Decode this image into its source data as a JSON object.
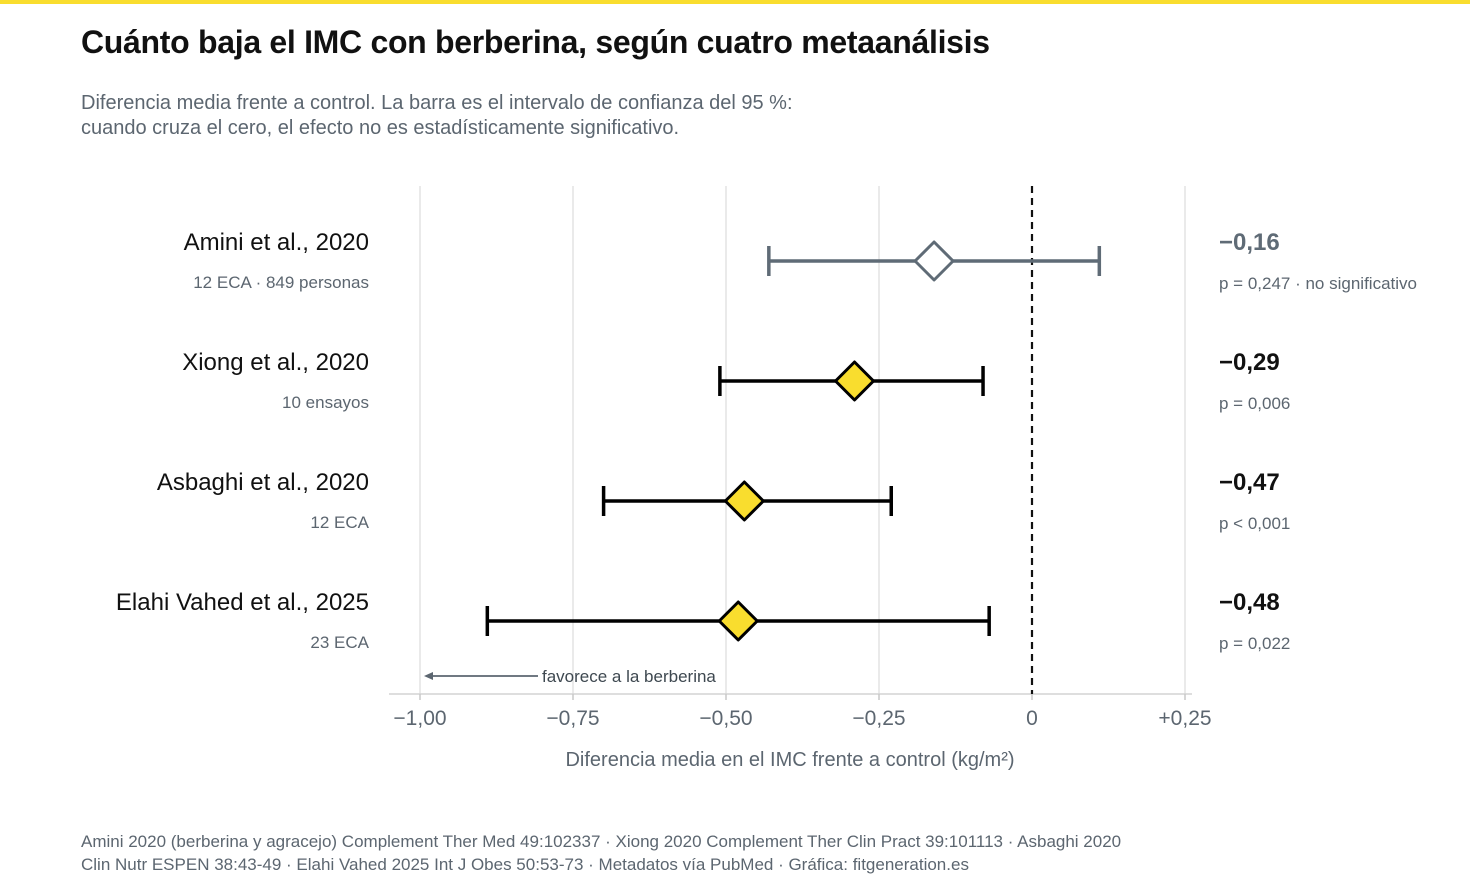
{
  "title": "Cuánto baja el IMC con berberina, según cuatro metaanálisis",
  "subtitle": [
    "Diferencia media frente a control. La barra es el intervalo de confianza del 95 %:",
    "cuando cruza el cero, el efecto no es estadísticamente significativo."
  ],
  "colors": {
    "accent": "#f9dd2e",
    "nonsig": "#5f6b76",
    "sig": "#000000",
    "grid": "#e3e3e3",
    "muted": "#5c6670"
  },
  "chart_data": {
    "type": "forest",
    "xlabel": "Diferencia media en el IMC frente a control (kg/m²)",
    "xlim": [
      -1.1,
      0.25
    ],
    "xticks": [
      {
        "value": -1.0,
        "label": "−1,00"
      },
      {
        "value": -0.75,
        "label": "−0,75"
      },
      {
        "value": -0.5,
        "label": "−0,50"
      },
      {
        "value": -0.25,
        "label": "−0,25"
      },
      {
        "value": 0,
        "label": "0"
      },
      {
        "value": 0.25,
        "label": "+0,25"
      }
    ],
    "reference_line": 0,
    "annotation": "favorece a la berberina",
    "studies": [
      {
        "name": "Amini et al., 2020",
        "detail": "12 ECA · 849 personas",
        "estimate": -0.16,
        "ci": [
          -0.43,
          0.11
        ],
        "estimate_label": "−0,16",
        "p_label": "p = 0,247 · no significativo",
        "significant": false
      },
      {
        "name": "Xiong et al., 2020",
        "detail": "10 ensayos",
        "estimate": -0.29,
        "ci": [
          -0.51,
          -0.08
        ],
        "estimate_label": "−0,29",
        "p_label": "p = 0,006",
        "significant": true
      },
      {
        "name": "Asbaghi et al., 2020",
        "detail": "12 ECA",
        "estimate": -0.47,
        "ci": [
          -0.7,
          -0.23
        ],
        "estimate_label": "−0,47",
        "p_label": "p < 0,001",
        "significant": true
      },
      {
        "name": "Elahi Vahed et al., 2025",
        "detail": "23 ECA",
        "estimate": -0.48,
        "ci": [
          -0.89,
          -0.07
        ],
        "estimate_label": "−0,48",
        "p_label": "p = 0,022",
        "significant": true
      }
    ]
  },
  "footer": [
    "Amini 2020 (berberina y agracejo) Complement Ther Med 49:102337 · Xiong 2020 Complement Ther Clin Pract 39:101113 · Asbaghi 2020",
    "Clin Nutr ESPEN 38:43-49 · Elahi Vahed 2025 Int J Obes 50:53-73 · Metadatos vía PubMed · Gráfica: fitgeneration.es"
  ]
}
